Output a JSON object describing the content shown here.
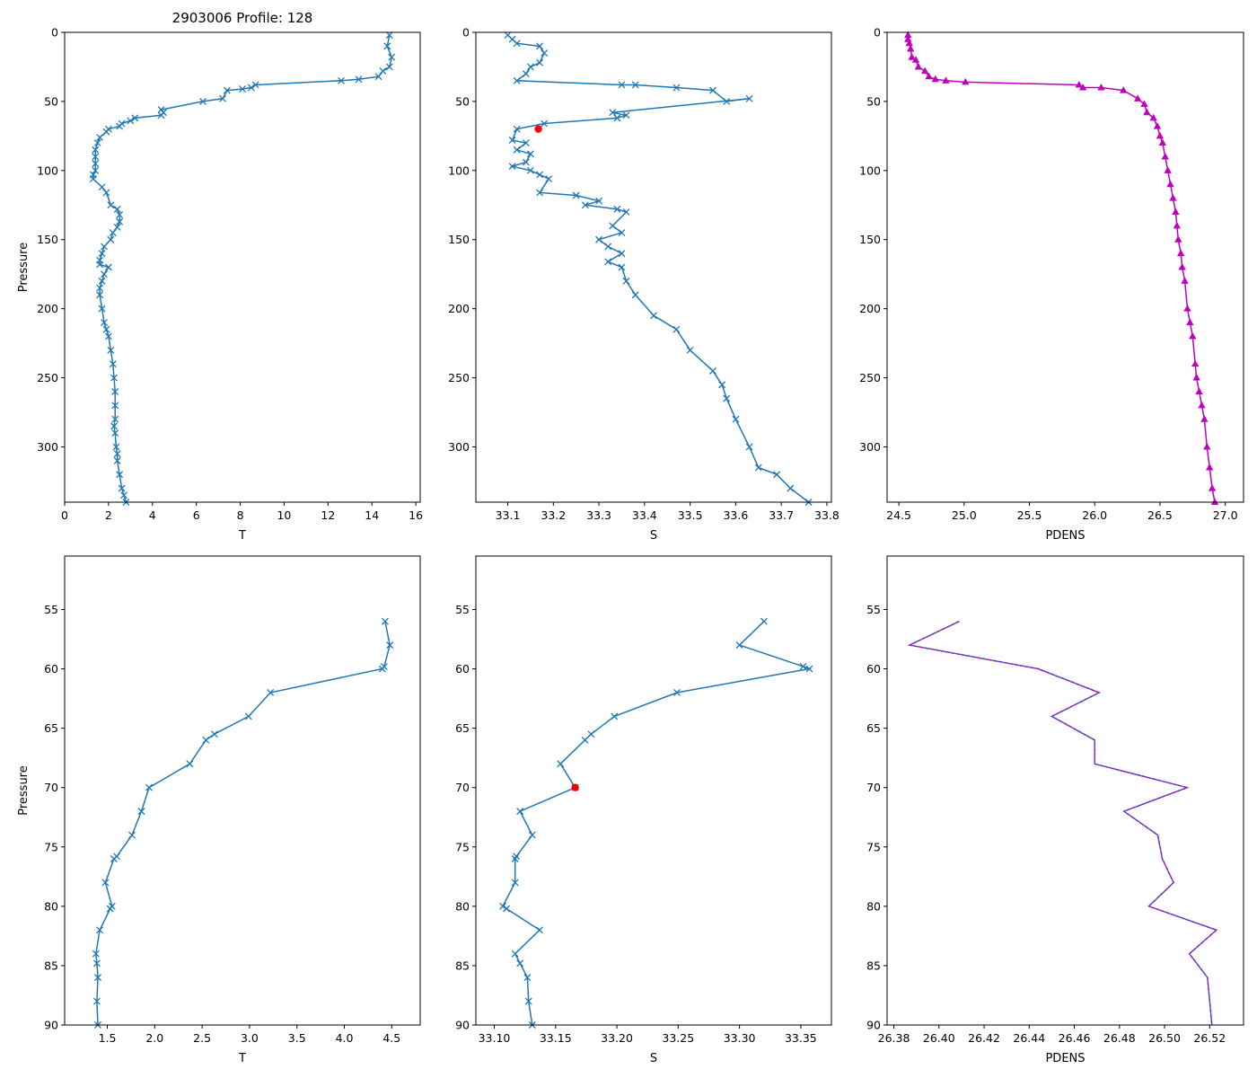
{
  "figure_title": "2903006 Profile: 128",
  "colors": {
    "series": "#1f77b4",
    "density": "#bf00bf",
    "highlight": "#ff0000",
    "axis": "#000000"
  },
  "chart_data": [
    {
      "id": "top-t",
      "type": "line",
      "title": "",
      "xlabel": "T",
      "ylabel": "Pressure",
      "xlim": [
        0,
        16.2
      ],
      "ylim": [
        340,
        0
      ],
      "invert_y": true,
      "xticks": [
        0,
        2,
        4,
        6,
        8,
        10,
        12,
        14,
        16
      ],
      "yticks": [
        0,
        50,
        100,
        150,
        200,
        250,
        300
      ],
      "marker": "x",
      "color": "#1f77b4",
      "series": [
        {
          "name": "T",
          "x": [
            14.8,
            14.7,
            14.9,
            14.8,
            14.5,
            14.3,
            13.4,
            12.6,
            8.7,
            8.5,
            8.1,
            7.4,
            7.2,
            6.3,
            4.4,
            4.5,
            4.4,
            3.2,
            3.0,
            2.6,
            2.5,
            2.0,
            1.9,
            1.6,
            1.5,
            1.4,
            1.4,
            1.4,
            1.4,
            1.3,
            1.3,
            1.7,
            1.9,
            2.1,
            2.4,
            2.5,
            2.5,
            2.4,
            2.2,
            2.1,
            1.8,
            1.7,
            1.6,
            1.6,
            2.0,
            1.8,
            1.7,
            1.6,
            1.6,
            1.7,
            1.8,
            1.9,
            2.0,
            2.1,
            2.2,
            2.25,
            2.3,
            2.3,
            2.3,
            2.25,
            2.3,
            2.35,
            2.4,
            2.4,
            2.5,
            2.6,
            2.7,
            2.8
          ],
          "y": [
            2,
            10,
            18,
            25,
            28,
            32,
            34,
            35,
            38,
            40,
            41,
            42,
            48,
            50,
            56,
            58,
            60,
            62,
            64,
            66,
            68,
            70,
            72,
            76,
            80,
            85,
            90,
            95,
            100,
            103,
            106,
            112,
            116,
            125,
            128,
            132,
            137,
            141,
            145,
            150,
            155,
            160,
            165,
            168,
            170,
            175,
            180,
            185,
            190,
            200,
            210,
            215,
            220,
            230,
            240,
            250,
            260,
            270,
            280,
            285,
            290,
            300,
            305,
            310,
            320,
            330,
            335,
            340
          ]
        }
      ]
    },
    {
      "id": "top-s",
      "type": "line",
      "title": "",
      "xlabel": "S",
      "ylabel": "",
      "xlim": [
        33.03,
        33.81
      ],
      "ylim": [
        340,
        0
      ],
      "invert_y": true,
      "xticks": [
        33.1,
        33.2,
        33.3,
        33.4,
        33.5,
        33.6,
        33.7,
        33.8
      ],
      "yticks": [
        0,
        50,
        100,
        150,
        200,
        250,
        300
      ],
      "marker": "x",
      "color": "#1f77b4",
      "series": [
        {
          "name": "S",
          "x": [
            33.1,
            33.11,
            33.12,
            33.17,
            33.18,
            33.17,
            33.15,
            33.14,
            33.12,
            33.35,
            33.38,
            33.47,
            33.55,
            33.58,
            33.63,
            33.33,
            33.36,
            33.34,
            33.18,
            33.12,
            33.11,
            33.14,
            33.12,
            33.15,
            33.14,
            33.11,
            33.15,
            33.17,
            33.19,
            33.17,
            33.25,
            33.3,
            33.27,
            33.34,
            33.36,
            33.33,
            33.35,
            33.3,
            33.32,
            33.35,
            33.32,
            33.35,
            33.36,
            33.38,
            33.42,
            33.47,
            33.5,
            33.55,
            33.57,
            33.58,
            33.6,
            33.63,
            33.65,
            33.69,
            33.72,
            33.76
          ],
          "y": [
            2,
            5,
            8,
            10,
            15,
            22,
            25,
            30,
            35,
            38,
            38,
            40,
            42,
            50,
            48,
            58,
            60,
            62,
            66,
            70,
            78,
            80,
            85,
            88,
            94,
            97,
            100,
            103,
            106,
            116,
            118,
            122,
            125,
            128,
            130,
            140,
            145,
            150,
            155,
            160,
            166,
            170,
            180,
            190,
            205,
            215,
            230,
            245,
            255,
            265,
            280,
            300,
            315,
            320,
            330,
            340
          ]
        },
        {
          "name": "selected",
          "x": [
            33.167
          ],
          "y": [
            70
          ],
          "marker": "o",
          "color": "#ff0000"
        }
      ]
    },
    {
      "id": "top-pdens",
      "type": "line",
      "title": "",
      "xlabel": "PDENS",
      "ylabel": "",
      "xlim": [
        24.41,
        27.14
      ],
      "ylim": [
        340,
        0
      ],
      "invert_y": true,
      "xticks": [
        24.5,
        25.0,
        25.5,
        26.0,
        26.5,
        27.0
      ],
      "yticks": [
        0,
        50,
        100,
        150,
        200,
        250,
        300
      ],
      "marker": "^",
      "color": "#bf00bf",
      "series": [
        {
          "name": "PDENS",
          "x": [
            24.57,
            24.57,
            24.58,
            24.59,
            24.6,
            24.63,
            24.65,
            24.7,
            24.73,
            24.78,
            24.86,
            25.01,
            25.88,
            25.91,
            26.05,
            26.22,
            26.33,
            26.38,
            26.4,
            26.45,
            26.48,
            26.5,
            26.52,
            26.54,
            26.56,
            26.58,
            26.6,
            26.62,
            26.63,
            26.64,
            26.66,
            26.67,
            26.69,
            26.71,
            26.73,
            26.75,
            26.77,
            26.78,
            26.8,
            26.82,
            26.84,
            26.86,
            26.88,
            26.9,
            26.92
          ],
          "y": [
            2,
            5,
            8,
            12,
            18,
            20,
            25,
            28,
            32,
            34,
            35,
            36,
            38,
            40,
            40,
            42,
            48,
            52,
            58,
            62,
            68,
            75,
            80,
            90,
            100,
            110,
            120,
            130,
            140,
            150,
            160,
            170,
            180,
            200,
            210,
            220,
            240,
            250,
            260,
            270,
            280,
            300,
            315,
            330,
            340
          ]
        }
      ]
    },
    {
      "id": "bottom-t",
      "type": "line",
      "title": "",
      "xlabel": "T",
      "ylabel": "Pressure",
      "xlim": [
        1.05,
        4.8
      ],
      "ylim": [
        90,
        50.5
      ],
      "invert_y": true,
      "xticks": [
        1.5,
        2.0,
        2.5,
        3.0,
        3.5,
        4.0,
        4.5
      ],
      "yticks": [
        55,
        60,
        65,
        70,
        75,
        80,
        85,
        90
      ],
      "marker": "x",
      "color": "#1f77b4",
      "series": [
        {
          "name": "T",
          "x": [
            4.43,
            4.48,
            4.42,
            4.4,
            3.22,
            2.99,
            2.63,
            2.54,
            2.37,
            1.94,
            1.86,
            1.76,
            1.6,
            1.57,
            1.48,
            1.55,
            1.53,
            1.42,
            1.38,
            1.39,
            1.4,
            1.39,
            1.4
          ],
          "y": [
            56,
            58,
            59.8,
            60,
            62,
            64,
            65.5,
            66,
            68,
            70,
            72,
            74,
            75.8,
            76,
            78,
            80,
            80.2,
            82,
            84,
            84.8,
            86,
            88,
            90
          ]
        }
      ]
    },
    {
      "id": "bottom-s",
      "type": "line",
      "title": "",
      "xlabel": "S",
      "ylabel": "",
      "xlim": [
        33.085,
        33.375
      ],
      "ylim": [
        90,
        50.5
      ],
      "invert_y": true,
      "xticks": [
        33.1,
        33.15,
        33.2,
        33.25,
        33.3,
        33.35
      ],
      "yticks": [
        55,
        60,
        65,
        70,
        75,
        80,
        85,
        90
      ],
      "marker": "x",
      "color": "#1f77b4",
      "series": [
        {
          "name": "S",
          "x": [
            33.32,
            33.3,
            33.352,
            33.357,
            33.249,
            33.198,
            33.179,
            33.174,
            33.154,
            33.166,
            33.121,
            33.131,
            33.118,
            33.117,
            33.117,
            33.107,
            33.11,
            33.137,
            33.117,
            33.121,
            33.127,
            33.128,
            33.131
          ],
          "y": [
            56,
            58,
            59.8,
            60,
            62,
            64,
            65.5,
            66,
            68,
            70,
            72,
            74,
            75.8,
            76,
            78,
            80,
            80.2,
            82,
            84,
            84.8,
            86,
            88,
            90
          ]
        },
        {
          "name": "selected",
          "x": [
            33.166
          ],
          "y": [
            70
          ],
          "marker": "o",
          "color": "#ff0000"
        }
      ]
    },
    {
      "id": "bottom-pdens",
      "type": "line",
      "title": "",
      "xlabel": "PDENS",
      "ylabel": "",
      "xlim": [
        26.377,
        26.535
      ],
      "ylim": [
        90,
        50.5
      ],
      "invert_y": true,
      "xticks": [
        26.38,
        26.4,
        26.42,
        26.44,
        26.46,
        26.48,
        26.5,
        26.52
      ],
      "yticks": [
        55,
        60,
        65,
        70,
        75,
        80,
        85,
        90
      ],
      "marker": "",
      "color": "#1f77b4",
      "overlay_color": "#bf00bf",
      "series": [
        {
          "name": "PDENS",
          "x": [
            26.409,
            26.387,
            26.444,
            26.471,
            26.45,
            26.469,
            26.469,
            26.51,
            26.482,
            26.497,
            26.499,
            26.504,
            26.493,
            26.523,
            26.511,
            26.519,
            26.521
          ],
          "y": [
            56,
            58,
            60,
            62,
            64,
            66,
            68,
            70,
            72,
            74,
            76,
            78,
            80,
            82,
            84,
            86,
            90
          ]
        }
      ]
    }
  ]
}
